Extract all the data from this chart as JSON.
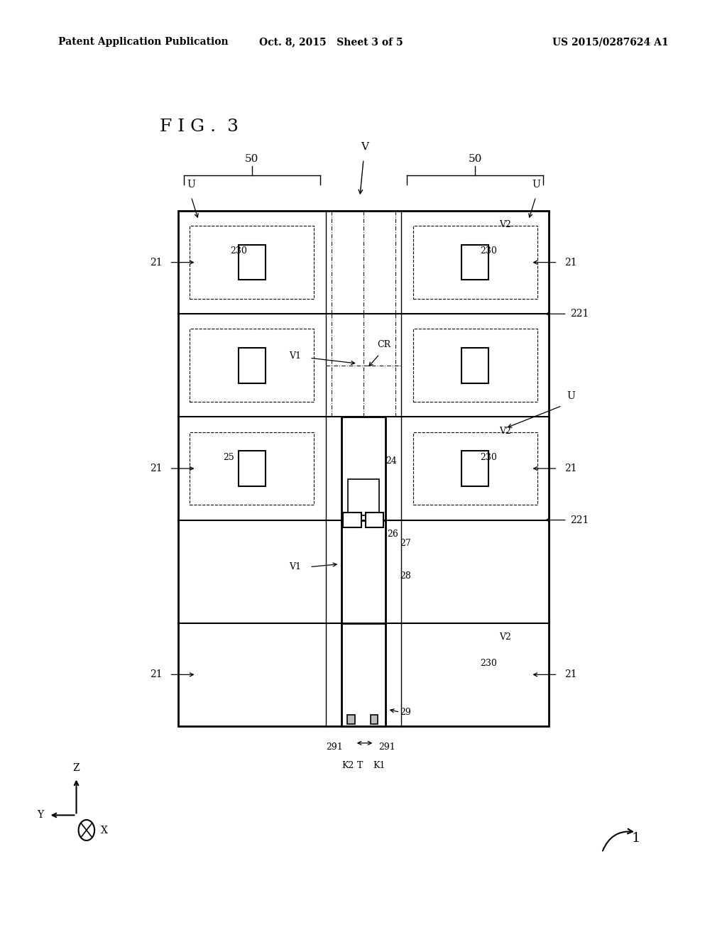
{
  "bg_color": "#ffffff",
  "header_left": "Patent Application Publication",
  "header_mid": "Oct. 8, 2015   Sheet 3 of 5",
  "header_right": "US 2015/0287624 A1",
  "fig_label": "F I G .  3"
}
